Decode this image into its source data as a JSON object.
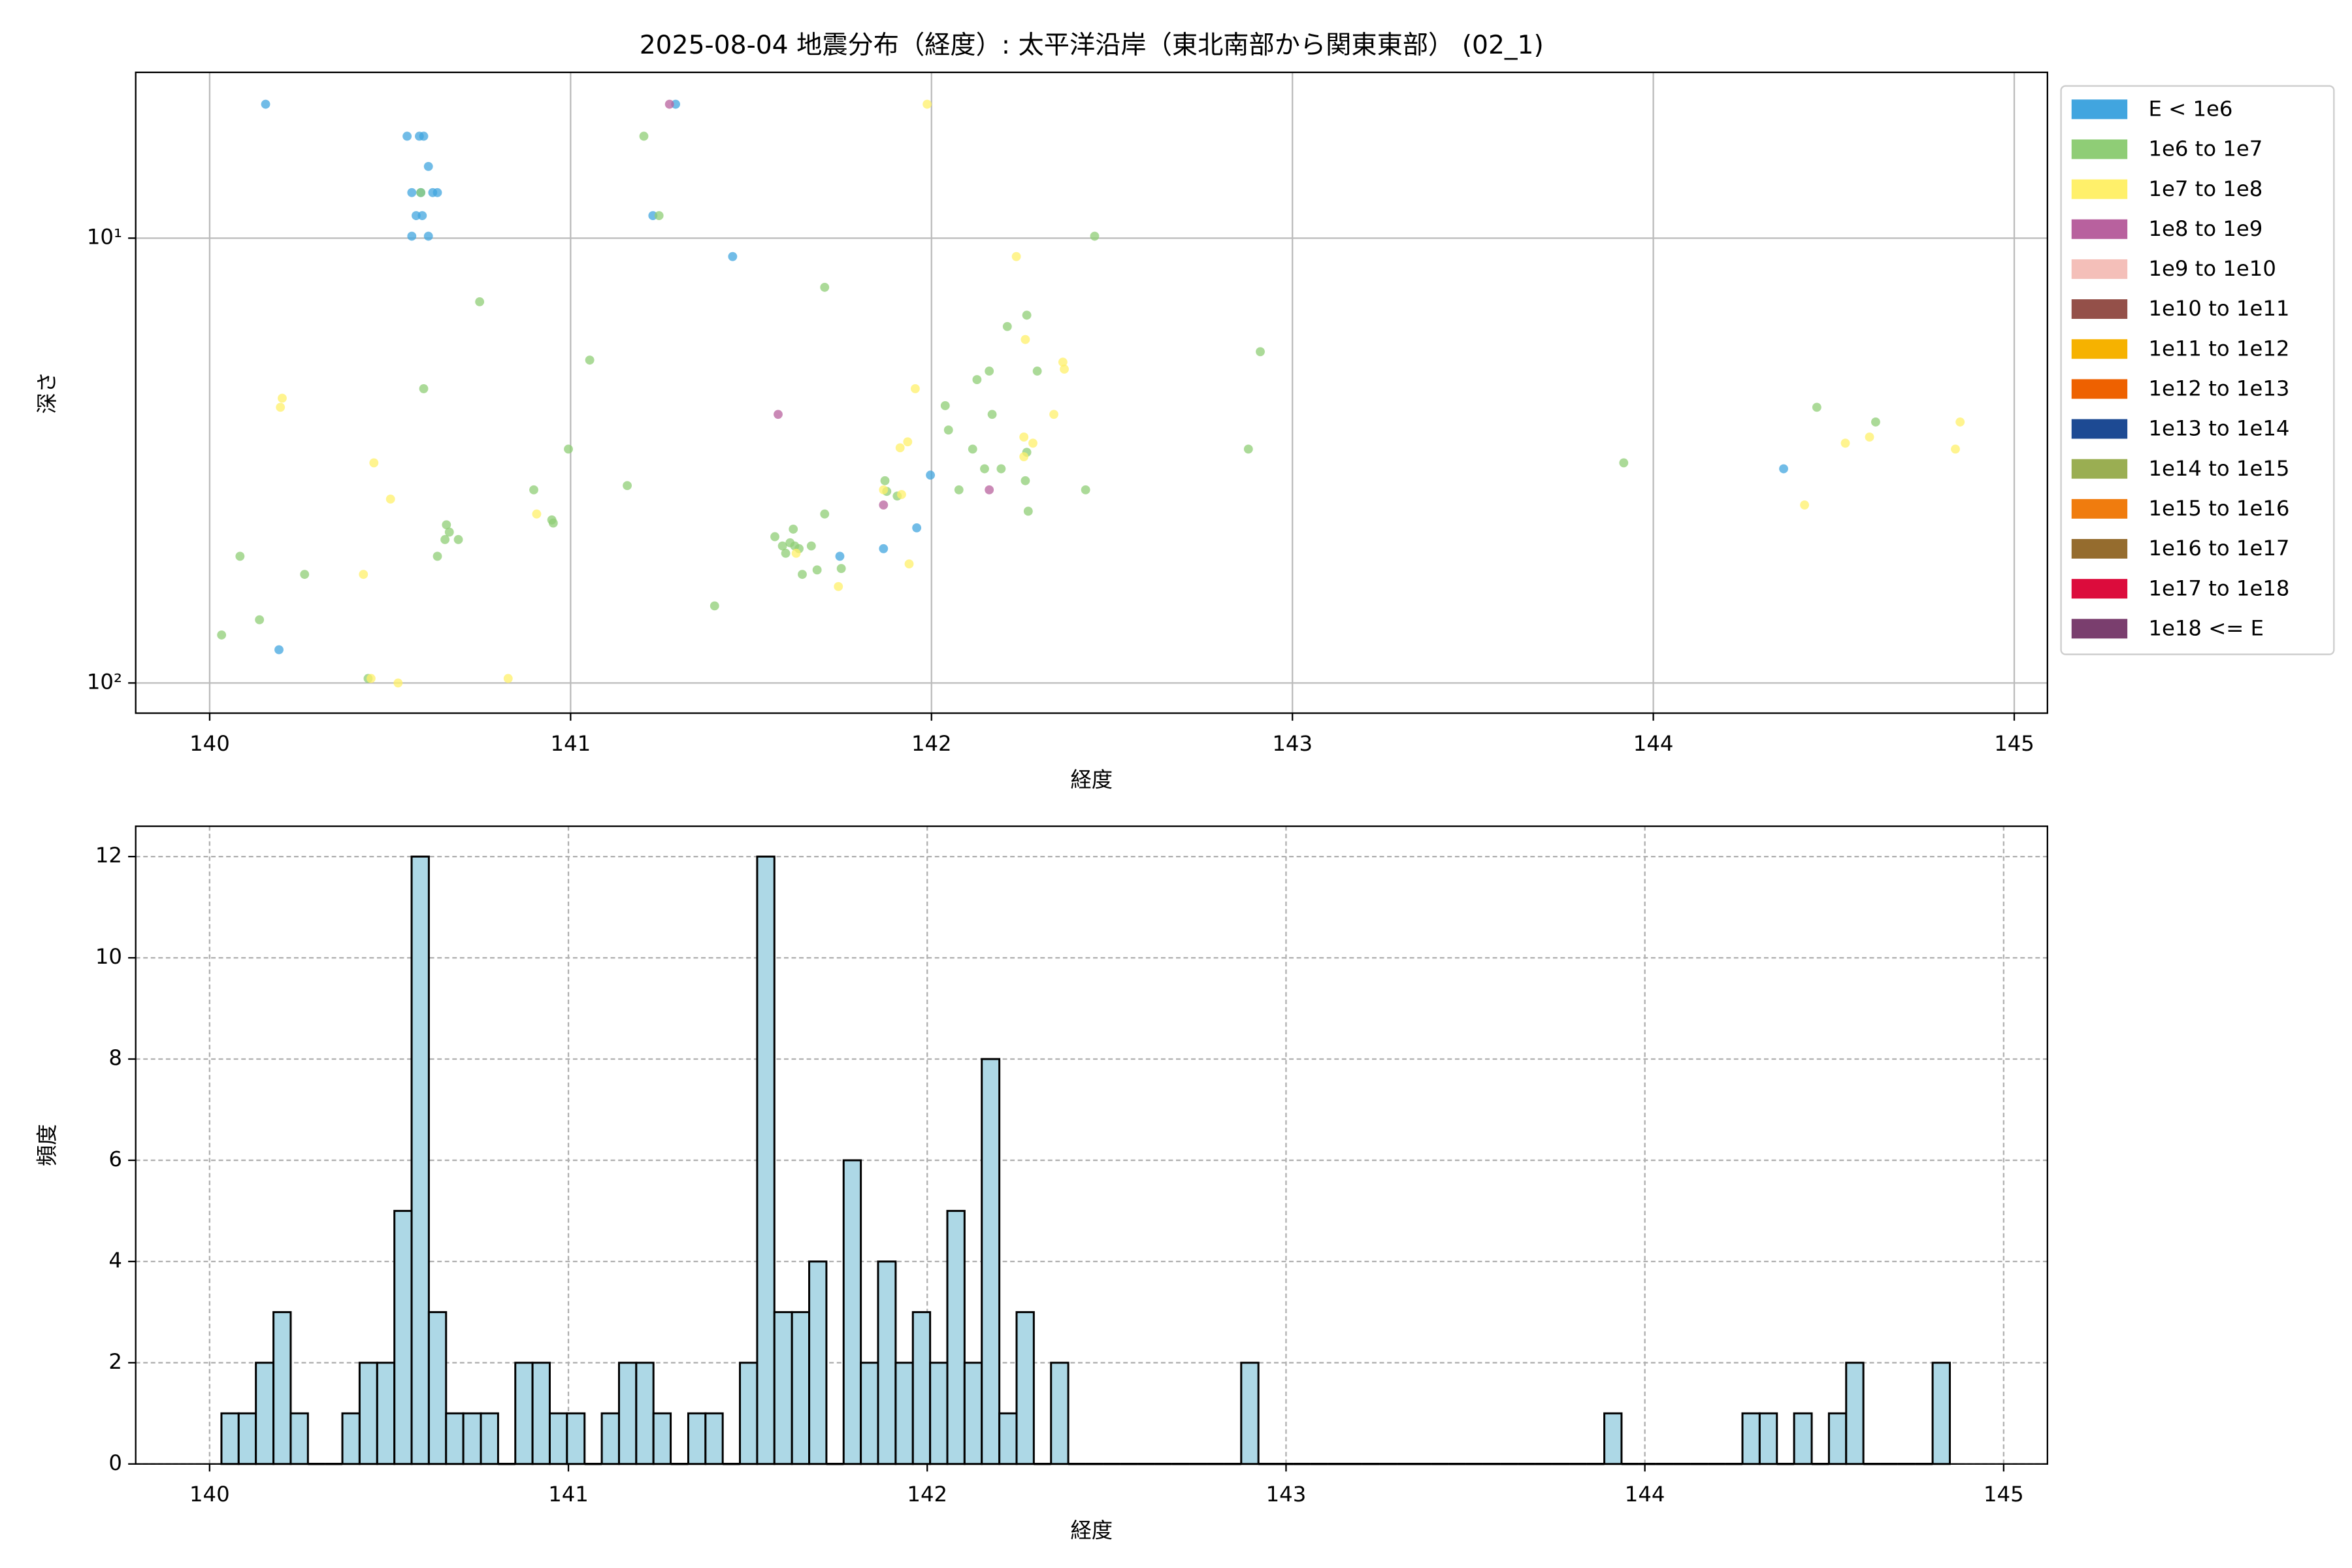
{
  "chart_data": [
    {
      "type": "scatter",
      "title": "2025-08-04 地震分布（経度）: 太平洋沿岸（東北南部から関東東部） (02_1)",
      "xlabel": "経度",
      "ylabel": "深さ",
      "xlim": [
        139.795,
        145.092
      ],
      "xticks": [
        140,
        141,
        142,
        143,
        144,
        145
      ],
      "ylim": [
        4.24,
        116.9
      ],
      "yscale": "log",
      "y_inverted": true,
      "yticks": [
        {
          "value": 10,
          "label": "10¹"
        },
        {
          "value": 100,
          "label": "10²"
        }
      ],
      "grid": true,
      "legend": "outside-upper-right",
      "series": [
        {
          "name": "E < 1e6",
          "color": "#41a5df",
          "x": [
            140.155,
            140.547,
            140.581,
            140.593,
            140.606,
            140.56,
            140.585,
            140.618,
            140.631,
            140.572,
            140.589,
            140.56,
            140.606,
            141.228,
            141.291,
            141.449,
            141.997,
            141.959,
            141.867,
            141.746,
            140.192,
            144.361
          ],
          "y": [
            5.0,
            5.9,
            5.9,
            5.9,
            6.9,
            7.9,
            7.9,
            7.9,
            7.9,
            8.9,
            8.9,
            9.9,
            9.9,
            8.9,
            5.0,
            11.0,
            34.1,
            44.8,
            49.9,
            51.9,
            84.2,
            33.0
          ]
        },
        {
          "name": "1e6 to 1e7",
          "color": "#8fcd76",
          "x": [
            141.203,
            141.245,
            140.748,
            140.593,
            141.053,
            140.994,
            141.157,
            140.898,
            140.656,
            140.664,
            140.652,
            140.689,
            140.631,
            140.952,
            140.948,
            140.084,
            140.263,
            140.138,
            140.033,
            140.439,
            141.399,
            141.704,
            142.452,
            142.911,
            142.878,
            143.918,
            144.453,
            144.616,
            142.21,
            142.264,
            142.126,
            142.16,
            142.038,
            142.047,
            142.114,
            142.147,
            142.193,
            142.168,
            142.293,
            142.264,
            142.26,
            142.268,
            142.427,
            142.076,
            141.871,
            141.876,
            141.704,
            141.566,
            141.617,
            141.587,
            141.596,
            141.608,
            141.621,
            141.633,
            141.667,
            141.642,
            141.683,
            141.75,
            141.905,
            140.585
          ],
          "y": [
            5.9,
            8.9,
            13.9,
            21.8,
            18.8,
            29.8,
            36.0,
            36.8,
            44.1,
            45.8,
            47.6,
            47.6,
            51.9,
            43.7,
            43.0,
            51.9,
            57.0,
            72.1,
            78.0,
            97.7,
            67.1,
            12.9,
            9.9,
            18.0,
            29.8,
            32.0,
            24.0,
            25.9,
            15.8,
            14.9,
            20.8,
            19.9,
            23.8,
            27.0,
            29.8,
            33.0,
            33.0,
            24.9,
            19.9,
            30.3,
            35.1,
            41.1,
            36.8,
            36.8,
            35.1,
            37.1,
            41.7,
            46.9,
            45.1,
            49.2,
            51.1,
            48.4,
            49.2,
            49.9,
            49.2,
            57.0,
            55.7,
            55.3,
            38.0,
            7.9
          ]
        },
        {
          "name": "1e7 to 1e8",
          "color": "#fff06a",
          "x": [
            141.988,
            142.235,
            142.26,
            142.364,
            142.368,
            141.955,
            142.339,
            141.934,
            141.913,
            142.256,
            142.256,
            142.281,
            140.201,
            140.196,
            140.455,
            140.501,
            140.906,
            140.426,
            140.447,
            140.522,
            140.827,
            141.938,
            141.867,
            141.917,
            141.625,
            141.742,
            144.419,
            144.532,
            144.599,
            144.85,
            144.837
          ],
          "y": [
            5.0,
            11.0,
            16.9,
            19.0,
            19.7,
            21.8,
            24.9,
            28.7,
            29.6,
            28.0,
            31.0,
            28.9,
            22.9,
            24.0,
            32.0,
            38.6,
            41.7,
            57.0,
            97.7,
            100,
            97.7,
            54.0,
            36.8,
            37.7,
            51.1,
            60.7,
            39.8,
            28.9,
            28.0,
            25.9,
            29.8
          ]
        },
        {
          "name": "1e8 to 1e9",
          "color": "#b8619e",
          "x": [
            141.274,
            141.575,
            141.867,
            142.16
          ],
          "y": [
            5.0,
            24.9,
            39.8,
            36.8
          ]
        },
        {
          "name": "1e9 to 1e10",
          "color": "#f4bfb9",
          "x": [],
          "y": []
        },
        {
          "name": "1e10 to 1e11",
          "color": "#945049",
          "x": [],
          "y": []
        },
        {
          "name": "1e11 to 1e12",
          "color": "#f6b200",
          "x": [],
          "y": []
        },
        {
          "name": "1e12 to 1e13",
          "color": "#ee6100",
          "x": [],
          "y": []
        },
        {
          "name": "1e13 to 1e14",
          "color": "#1d4a93",
          "x": [],
          "y": []
        },
        {
          "name": "1e14 to 1e15",
          "color": "#9aae52",
          "x": [],
          "y": []
        },
        {
          "name": "1e15 to 1e16",
          "color": "#f07c0e",
          "x": [],
          "y": []
        },
        {
          "name": "1e16 to 1e17",
          "color": "#956c2e",
          "x": [],
          "y": []
        },
        {
          "name": "1e17 to 1e18",
          "color": "#dc0c3c",
          "x": [],
          "y": []
        },
        {
          "name": "1e18 <= E",
          "color": "#7a3e6e",
          "x": [],
          "y": []
        }
      ]
    },
    {
      "type": "histogram",
      "xlabel": "経度",
      "ylabel": "頻度",
      "xlim": [
        139.794,
        145.122
      ],
      "xticks": [
        140,
        141,
        142,
        143,
        144,
        145
      ],
      "ylim": [
        0,
        12.6
      ],
      "yticks": [
        0,
        2,
        4,
        6,
        8,
        10,
        12
      ],
      "grid": true,
      "grid_style": "dashed",
      "color": "#add8e6",
      "edgecolor": "#000000",
      "bins": [
        140.033,
        140.081,
        140.129,
        140.178,
        140.226,
        140.274,
        140.322,
        140.37,
        140.418,
        140.467,
        140.515,
        140.563,
        140.611,
        140.659,
        140.707,
        140.756,
        140.804,
        140.852,
        140.9,
        140.948,
        140.996,
        141.045,
        141.093,
        141.141,
        141.189,
        141.237,
        141.285,
        141.334,
        141.382,
        141.43,
        141.478,
        141.526,
        141.574,
        141.623,
        141.671,
        141.719,
        141.767,
        141.815,
        141.863,
        141.912,
        141.96,
        142.008,
        142.056,
        142.104,
        142.152,
        142.201,
        142.249,
        142.297,
        142.345,
        142.393,
        142.442,
        142.49,
        142.538,
        142.586,
        142.634,
        142.682,
        142.73,
        142.779,
        142.827,
        142.875,
        142.923,
        142.971,
        143.02,
        143.068,
        143.116,
        143.164,
        143.212,
        143.26,
        143.309,
        143.357,
        143.405,
        143.453,
        143.501,
        143.549,
        143.598,
        143.646,
        143.694,
        143.742,
        143.79,
        143.838,
        143.887,
        143.935,
        143.983,
        144.031,
        144.079,
        144.127,
        144.176,
        144.224,
        144.272,
        144.32,
        144.368,
        144.416,
        144.465,
        144.513,
        144.561,
        144.609,
        144.657,
        144.705,
        144.754,
        144.802,
        144.85
      ],
      "counts": [
        1,
        1,
        2,
        3,
        1,
        0,
        0,
        1,
        2,
        2,
        5,
        12,
        3,
        1,
        1,
        1,
        0,
        2,
        2,
        1,
        1,
        0,
        1,
        2,
        2,
        1,
        0,
        1,
        1,
        0,
        2,
        12,
        3,
        3,
        4,
        0,
        6,
        2,
        4,
        2,
        3,
        2,
        5,
        2,
        8,
        1,
        3,
        0,
        2,
        0,
        0,
        0,
        0,
        0,
        0,
        0,
        0,
        0,
        0,
        2,
        0,
        0,
        0,
        0,
        0,
        0,
        0,
        0,
        0,
        0,
        0,
        0,
        0,
        0,
        0,
        0,
        0,
        0,
        0,
        0,
        1,
        0,
        0,
        0,
        0,
        0,
        0,
        0,
        1,
        1,
        0,
        1,
        0,
        1,
        2,
        0,
        0,
        0,
        0,
        2
      ]
    }
  ]
}
